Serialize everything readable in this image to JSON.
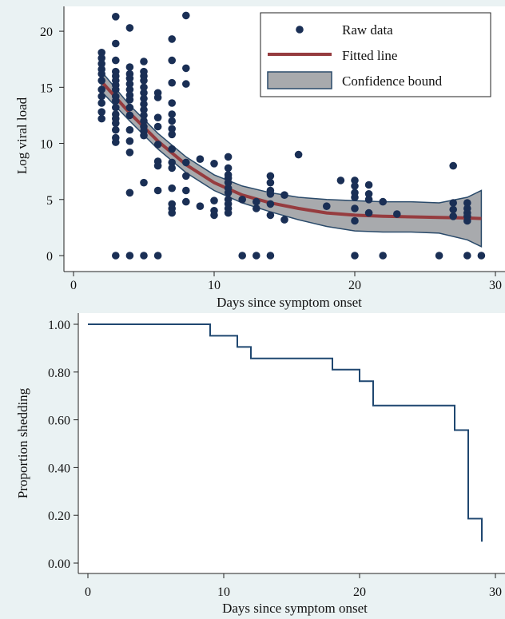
{
  "chart_data": [
    {
      "type": "scatter",
      "xlabel": "Days since symptom onset",
      "ylabel": "Log viral load",
      "xlim": [
        0,
        30
      ],
      "ylim": [
        -0.5,
        22
      ],
      "xticks": [
        0,
        10,
        20,
        30
      ],
      "yticks": [
        0,
        5,
        10,
        15,
        20
      ],
      "grid": false,
      "legend": {
        "placement": "top-right",
        "entries": [
          "Raw data",
          "Fitted line",
          "Confidence bound"
        ]
      },
      "series": [
        {
          "name": "Raw data",
          "points": [
            [
              2,
              18.1
            ],
            [
              2,
              17.6
            ],
            [
              2,
              17.1
            ],
            [
              2,
              16.6
            ],
            [
              2,
              16.2
            ],
            [
              2,
              15.6
            ],
            [
              2,
              14.8
            ],
            [
              2,
              14.2
            ],
            [
              2,
              13.6
            ],
            [
              2,
              12.8
            ],
            [
              2,
              12.2
            ],
            [
              3,
              21.3
            ],
            [
              3,
              18.9
            ],
            [
              3,
              17.4
            ],
            [
              3,
              16.4
            ],
            [
              3,
              16.0
            ],
            [
              3,
              15.6
            ],
            [
              3,
              15.2
            ],
            [
              3,
              14.8
            ],
            [
              3,
              14.2
            ],
            [
              3,
              13.8
            ],
            [
              3,
              13.2
            ],
            [
              3,
              12.6
            ],
            [
              3,
              12.2
            ],
            [
              3,
              11.8
            ],
            [
              3,
              11.2
            ],
            [
              3,
              10.5
            ],
            [
              3,
              10.1
            ],
            [
              3,
              0
            ],
            [
              4,
              20.3
            ],
            [
              4,
              16.8
            ],
            [
              4,
              16.2
            ],
            [
              4,
              15.8
            ],
            [
              4,
              15.3
            ],
            [
              4,
              14.8
            ],
            [
              4,
              14.3
            ],
            [
              4,
              13.9
            ],
            [
              4,
              13.2
            ],
            [
              4,
              12.5
            ],
            [
              4,
              11.2
            ],
            [
              4,
              10.2
            ],
            [
              4,
              9.2
            ],
            [
              4,
              5.6
            ],
            [
              4,
              0
            ],
            [
              5,
              17.3
            ],
            [
              5,
              16.4
            ],
            [
              5,
              16.0
            ],
            [
              5,
              15.6
            ],
            [
              5,
              15.0
            ],
            [
              5,
              14.5
            ],
            [
              5,
              14.0
            ],
            [
              5,
              13.5
            ],
            [
              5,
              13.0
            ],
            [
              5,
              12.5
            ],
            [
              5,
              12.0
            ],
            [
              5,
              11.5
            ],
            [
              5,
              11.1
            ],
            [
              5,
              10.7
            ],
            [
              5,
              6.5
            ],
            [
              5,
              0
            ],
            [
              6,
              14.5
            ],
            [
              6,
              14.1
            ],
            [
              6,
              12.3
            ],
            [
              6,
              11.5
            ],
            [
              6,
              9.9
            ],
            [
              6,
              8.4
            ],
            [
              6,
              8.0
            ],
            [
              6,
              5.8
            ],
            [
              6,
              0
            ],
            [
              7,
              19.3
            ],
            [
              7,
              17.4
            ],
            [
              7,
              15.4
            ],
            [
              7,
              13.6
            ],
            [
              7,
              12.6
            ],
            [
              7,
              12.0
            ],
            [
              7,
              11.3
            ],
            [
              7,
              10.8
            ],
            [
              7,
              9.5
            ],
            [
              7,
              8.3
            ],
            [
              7,
              7.8
            ],
            [
              7,
              6.0
            ],
            [
              7,
              4.6
            ],
            [
              7,
              4.2
            ],
            [
              7,
              3.8
            ],
            [
              8,
              21.4
            ],
            [
              8,
              16.7
            ],
            [
              8,
              15.3
            ],
            [
              8,
              8.3
            ],
            [
              8,
              7.1
            ],
            [
              8,
              5.8
            ],
            [
              8,
              4.8
            ],
            [
              9,
              8.6
            ],
            [
              9,
              4.4
            ],
            [
              10,
              8.2
            ],
            [
              10,
              4.9
            ],
            [
              10,
              4.0
            ],
            [
              10,
              3.6
            ],
            [
              11,
              8.8
            ],
            [
              11,
              7.8
            ],
            [
              11,
              7.2
            ],
            [
              11,
              6.9
            ],
            [
              11,
              6.5
            ],
            [
              11,
              6.0
            ],
            [
              11,
              5.6
            ],
            [
              11,
              5.0
            ],
            [
              11,
              4.6
            ],
            [
              11,
              4.2
            ],
            [
              11,
              3.8
            ],
            [
              12,
              5.0
            ],
            [
              12,
              0
            ],
            [
              13,
              4.8
            ],
            [
              13,
              4.2
            ],
            [
              13,
              0
            ],
            [
              14,
              7.1
            ],
            [
              14,
              6.5
            ],
            [
              14,
              5.8
            ],
            [
              14,
              5.5
            ],
            [
              14,
              4.6
            ],
            [
              14,
              3.6
            ],
            [
              14,
              0
            ],
            [
              15,
              5.4
            ],
            [
              15,
              3.2
            ],
            [
              16,
              9.0
            ],
            [
              18,
              4.4
            ],
            [
              19,
              6.7
            ],
            [
              20,
              6.7
            ],
            [
              20,
              6.2
            ],
            [
              20,
              5.6
            ],
            [
              20,
              5.2
            ],
            [
              20,
              4.2
            ],
            [
              20,
              3.1
            ],
            [
              20,
              0
            ],
            [
              21,
              6.3
            ],
            [
              21,
              5.5
            ],
            [
              21,
              5.0
            ],
            [
              21,
              3.8
            ],
            [
              22,
              4.8
            ],
            [
              22,
              0
            ],
            [
              23,
              3.7
            ],
            [
              26,
              0
            ],
            [
              27,
              8.0
            ],
            [
              27,
              4.7
            ],
            [
              27,
              4.1
            ],
            [
              27,
              3.5
            ],
            [
              28,
              4.7
            ],
            [
              28,
              4.2
            ],
            [
              28,
              3.8
            ],
            [
              28,
              3.5
            ],
            [
              28,
              3.1
            ],
            [
              28,
              0
            ],
            [
              29,
              0
            ]
          ]
        },
        {
          "name": "Fitted line",
          "x": [
            2,
            4,
            6,
            8,
            10,
            12,
            14,
            16,
            18,
            20,
            22,
            24,
            26,
            28,
            29
          ],
          "y": [
            15.5,
            12.7,
            10.2,
            8.1,
            6.5,
            5.4,
            4.7,
            4.2,
            3.8,
            3.6,
            3.5,
            3.45,
            3.4,
            3.35,
            3.3
          ]
        },
        {
          "name": "Confidence bound",
          "x": [
            2,
            4,
            6,
            8,
            10,
            12,
            14,
            16,
            18,
            20,
            22,
            24,
            26,
            28,
            29
          ],
          "upper": [
            16.4,
            13.4,
            10.9,
            8.8,
            7.2,
            6.2,
            5.6,
            5.2,
            5.0,
            4.9,
            4.8,
            4.8,
            4.7,
            5.2,
            5.8
          ],
          "lower": [
            14.6,
            12.0,
            9.5,
            7.4,
            5.8,
            4.7,
            3.9,
            3.2,
            2.6,
            2.2,
            2.1,
            2.1,
            2.0,
            1.4,
            0.8
          ]
        }
      ]
    },
    {
      "type": "line",
      "step": true,
      "xlabel": "Days since symptom onset",
      "ylabel": "Proportion shedding",
      "xlim": [
        -0.5,
        30.5
      ],
      "ylim": [
        -0.02,
        1.03
      ],
      "xticks": [
        0,
        10,
        20,
        30
      ],
      "yticks": [
        0,
        0.2,
        0.4,
        0.6,
        0.8,
        1.0
      ],
      "ytick_labels": [
        "0.00",
        "0.20",
        "0.40",
        "0.60",
        "0.80",
        "1.00"
      ],
      "grid": false,
      "series": [
        {
          "x": [
            0,
            9,
            11,
            12,
            18,
            20,
            21,
            27,
            28,
            29
          ],
          "y": [
            1.0,
            0.952,
            0.905,
            0.857,
            0.81,
            0.762,
            0.66,
            0.557,
            0.186,
            0.093
          ]
        }
      ]
    }
  ],
  "colors": {
    "background": "#eaf2f3",
    "plot_background": "#ffffff",
    "navy": "#1a2f55",
    "fitted_line": "#963c3f",
    "band_fill": "#a8aaad",
    "band_edge": "#2a4a6a",
    "step_line": "#1f4770"
  }
}
